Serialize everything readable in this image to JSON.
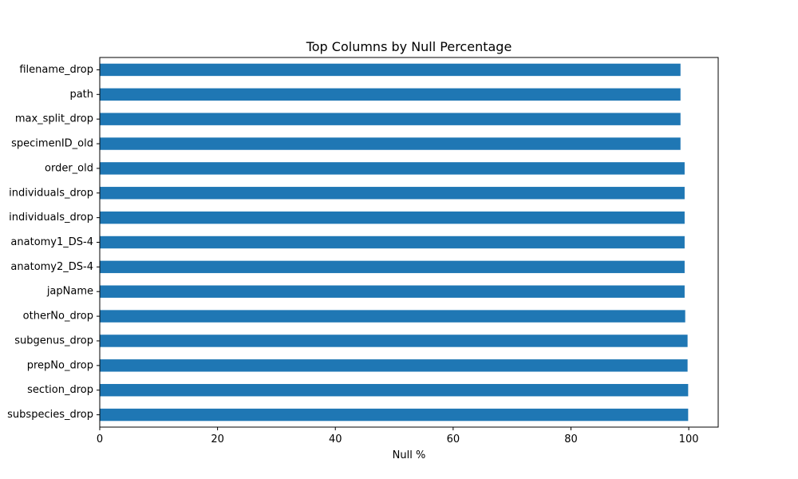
{
  "chart_data": {
    "type": "bar",
    "orientation": "horizontal",
    "title": "Top Columns by Null Percentage",
    "xlabel": "Null %",
    "ylabel": "",
    "xlim": [
      0,
      105
    ],
    "xticks": [
      0,
      20,
      40,
      60,
      80,
      100
    ],
    "grid": false,
    "bar_color": "#1f77b4",
    "categories": [
      "filename_drop",
      "path",
      "max_split_drop",
      "specimenID_old",
      "order_old",
      "individuals_drop",
      "individuals_drop",
      "anatomy1_DS-4",
      "anatomy2_DS-4",
      "japName",
      "otherNo_drop",
      "subgenus_drop",
      "prepNo_drop",
      "section_drop",
      "subspecies_drop"
    ],
    "values": [
      98.6,
      98.6,
      98.6,
      98.6,
      99.3,
      99.3,
      99.3,
      99.3,
      99.3,
      99.3,
      99.4,
      99.8,
      99.8,
      99.9,
      99.9
    ]
  }
}
